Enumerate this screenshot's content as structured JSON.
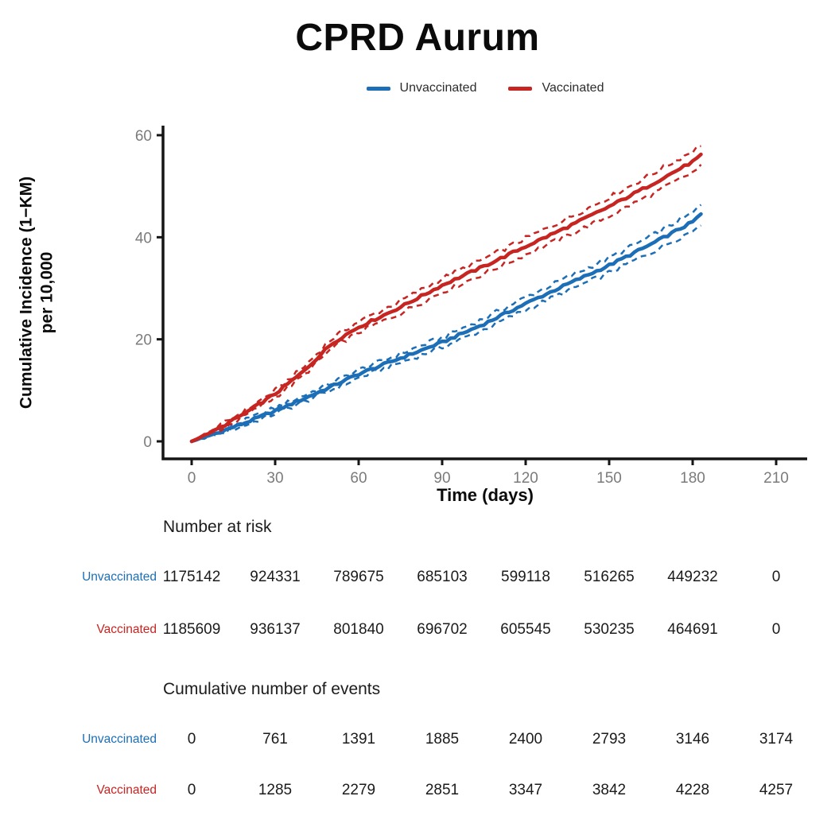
{
  "title": "CPRD Aurum",
  "colors": {
    "unvaccinated_blue": "#1c6fb7",
    "vaccinated_red": "#c62522",
    "axis_tick_text": "#7b7b7b",
    "axis_line": "#151515"
  },
  "legend": {
    "items": [
      {
        "label": "Unvaccinated",
        "color": "#1c6fb7"
      },
      {
        "label": "Vaccinated",
        "color": "#c62522"
      }
    ]
  },
  "chart_data": {
    "type": "line",
    "title": "CPRD Aurum",
    "xlabel": "Time (days)",
    "ylabel": "Cumulative Incidence (1−KM) per 10,000",
    "ylabel_line1": "Cumulative Incidence (1−KM)",
    "ylabel_line2": "per 10,000",
    "xlim": [
      0,
      210
    ],
    "ylim": [
      0,
      60
    ],
    "xticks": [
      0,
      30,
      60,
      90,
      120,
      150,
      180,
      210
    ],
    "yticks": [
      0,
      20,
      40,
      60
    ],
    "grid": false,
    "legend_position": "top",
    "confidence_bands": "dashed, approx ±3% around each curve",
    "series": [
      {
        "name": "Unvaccinated",
        "color": "#1c6fb7",
        "x": [
          0,
          10,
          20,
          30,
          40,
          50,
          60,
          75,
          90,
          105,
          120,
          135,
          150,
          165,
          180,
          183
        ],
        "y": [
          0,
          1.8,
          3.8,
          6.0,
          8.3,
          10.7,
          13.2,
          16.3,
          19.4,
          23.0,
          27.0,
          30.8,
          34.5,
          38.6,
          43.0,
          44.5
        ]
      },
      {
        "name": "Vaccinated",
        "color": "#c62522",
        "x": [
          0,
          10,
          20,
          30,
          40,
          50,
          55,
          60,
          75,
          90,
          105,
          120,
          135,
          150,
          165,
          180,
          183
        ],
        "y": [
          0,
          2.6,
          5.8,
          9.3,
          13.6,
          19.0,
          20.8,
          22.4,
          26.3,
          30.6,
          34.3,
          38.2,
          42.0,
          46.0,
          50.3,
          54.8,
          56.0
        ]
      }
    ]
  },
  "risk_table": {
    "heading": "Number at risk",
    "times": [
      0,
      30,
      60,
      90,
      120,
      150,
      180,
      210
    ],
    "rows": [
      {
        "label": "Unvaccinated",
        "color": "#1c6fb7",
        "values": [
          "1175142",
          "924331",
          "789675",
          "685103",
          "599118",
          "516265",
          "449232",
          "0"
        ]
      },
      {
        "label": "Vaccinated",
        "color": "#c62522",
        "values": [
          "1185609",
          "936137",
          "801840",
          "696702",
          "605545",
          "530235",
          "464691",
          "0"
        ]
      }
    ]
  },
  "events_table": {
    "heading": "Cumulative number of events",
    "rows": [
      {
        "label": "Unvaccinated",
        "color": "#1c6fb7",
        "values": [
          "0",
          "761",
          "1391",
          "1885",
          "2400",
          "2793",
          "3146",
          "3174"
        ]
      },
      {
        "label": "Vaccinated",
        "color": "#c62522",
        "values": [
          "0",
          "1285",
          "2279",
          "2851",
          "3347",
          "3842",
          "4228",
          "4257"
        ]
      }
    ]
  }
}
